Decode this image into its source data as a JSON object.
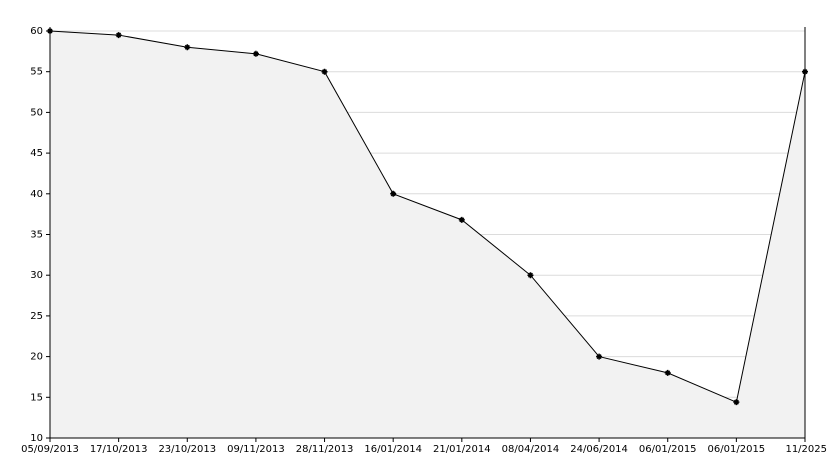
{
  "chart_data": {
    "type": "area-line",
    "categories": [
      "05/09/2013",
      "17/10/2013",
      "23/10/2013",
      "09/11/2013",
      "28/11/2013",
      "16/01/2014",
      "21/01/2014",
      "08/04/2014",
      "24/06/2014",
      "06/01/2015",
      "06/01/2015",
      "11/2025"
    ],
    "values": [
      60,
      59.5,
      58,
      57.2,
      55,
      40,
      36.8,
      30,
      20,
      18,
      14.4,
      55
    ],
    "color": "#000000",
    "fill_color": "#f2f2f2",
    "ylim": [
      10,
      60
    ],
    "yticks": [
      10,
      15,
      20,
      25,
      30,
      35,
      40,
      45,
      50,
      55,
      60
    ],
    "grid": true
  }
}
